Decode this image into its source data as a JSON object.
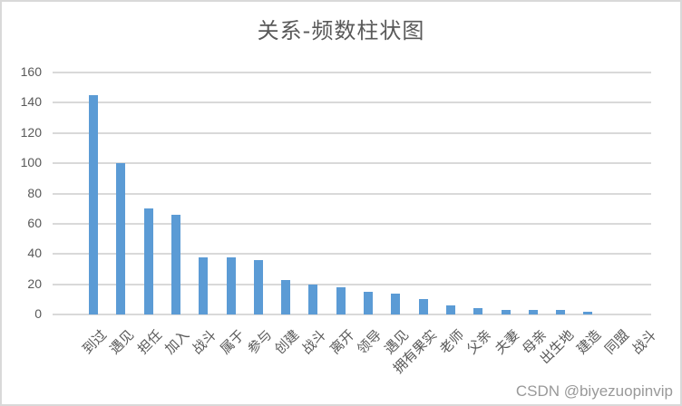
{
  "chart_data": {
    "type": "bar",
    "title": "关系-频数柱状图",
    "xlabel": "",
    "ylabel": "",
    "ylim": [
      0,
      160
    ],
    "yticks": [
      0,
      20,
      40,
      60,
      80,
      100,
      120,
      140,
      160
    ],
    "grid": true,
    "legend": null,
    "bar_color": "#5b9bd5",
    "categories": [
      "到过",
      "遇见",
      "担任",
      "加入",
      "战斗",
      "属于",
      "参与",
      "创建",
      "战斗",
      "离开",
      "领导",
      "遇见",
      "拥有果实",
      "老师",
      "父亲",
      "夫妻",
      "母亲",
      "出生地",
      "建造",
      "同盟",
      "战斗"
    ],
    "values": [
      145,
      100,
      70,
      66,
      38,
      38,
      36,
      23,
      20,
      18,
      15,
      14,
      10,
      6,
      4,
      3,
      3,
      3,
      2,
      0,
      0
    ]
  },
  "watermark": "CSDN @biyezuopinvip"
}
